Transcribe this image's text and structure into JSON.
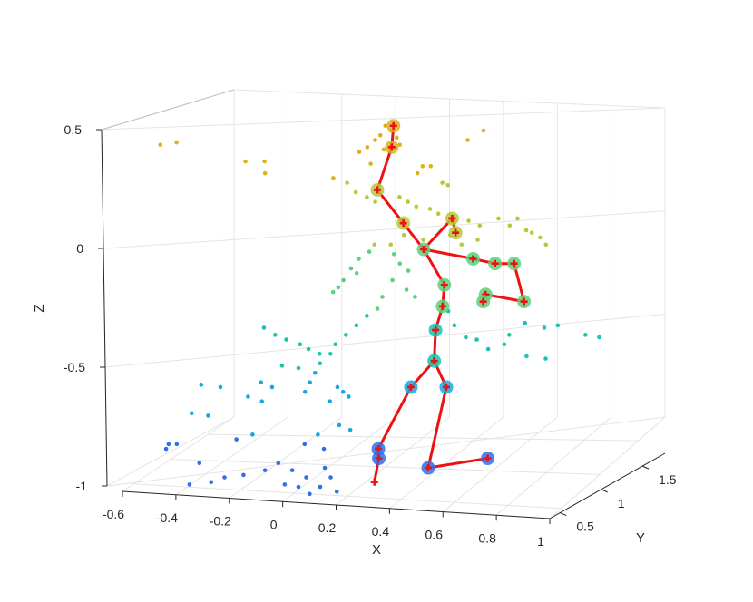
{
  "chart_data": {
    "type": "scatter",
    "title": "",
    "xlabel": "X",
    "ylabel": "Y",
    "zlabel": "Z",
    "x_ticks": [
      "-0.6",
      "-0.4",
      "-0.2",
      "0",
      "0.2",
      "0.4",
      "0.6",
      "0.8",
      "1"
    ],
    "y_ticks": [
      "0.5",
      "1",
      "1.5"
    ],
    "z_ticks": [
      "0.5",
      "0",
      "-0.5",
      "-1"
    ],
    "grid": true,
    "colors": {
      "skeleton": "#ee1111",
      "joint_marker": "#ee1111",
      "colormap": [
        "#2f6fe8",
        "#1aa7e0",
        "#19c4b0",
        "#5cd27a",
        "#b7c83a",
        "#d9b31f"
      ]
    },
    "series": [
      {
        "kind": "point_cloud",
        "points": [
          [
            0.4,
            0.52
          ],
          [
            0.42,
            0.5
          ],
          [
            0.38,
            0.48
          ],
          [
            0.36,
            0.46
          ],
          [
            0.44,
            0.47
          ],
          [
            0.33,
            0.43
          ],
          [
            0.3,
            0.41
          ],
          [
            -0.43,
            0.44
          ],
          [
            -0.37,
            0.45
          ],
          [
            -0.05,
            0.37
          ],
          [
            -0.12,
            0.37
          ],
          [
            -0.05,
            0.32
          ],
          [
            0.34,
            0.36
          ],
          [
            0.39,
            0.42
          ],
          [
            0.45,
            0.44
          ],
          [
            0.53,
            0.35
          ],
          [
            0.56,
            0.35
          ],
          [
            0.51,
            0.32
          ],
          [
            0.6,
            0.28
          ],
          [
            0.62,
            0.27
          ],
          [
            0.7,
            0.46
          ],
          [
            0.76,
            0.5
          ],
          [
            0.2,
            0.3
          ],
          [
            0.25,
            0.28
          ],
          [
            0.28,
            0.24
          ],
          [
            0.32,
            0.22
          ],
          [
            0.35,
            0.2
          ],
          [
            0.44,
            0.22
          ],
          [
            0.47,
            0.2
          ],
          [
            0.5,
            0.18
          ],
          [
            0.55,
            0.17
          ],
          [
            0.58,
            0.15
          ],
          [
            0.63,
            0.14
          ],
          [
            0.69,
            0.12
          ],
          [
            0.73,
            0.1
          ],
          [
            0.8,
            0.13
          ],
          [
            0.84,
            0.1
          ],
          [
            0.87,
            0.13
          ],
          [
            0.9,
            0.08
          ],
          [
            0.92,
            0.07
          ],
          [
            0.95,
            0.05
          ],
          [
            0.97,
            0.02
          ],
          [
            0.72,
            0.04
          ],
          [
            0.66,
            0.02
          ],
          [
            0.62,
            0.06
          ],
          [
            0.52,
            0.04
          ],
          [
            0.45,
            0.06
          ],
          [
            0.4,
            0.02
          ],
          [
            0.34,
            0.02
          ],
          [
            0.32,
            -0.01
          ],
          [
            0.28,
            -0.04
          ],
          [
            0.25,
            -0.08
          ],
          [
            0.27,
            -0.1
          ],
          [
            0.22,
            -0.13
          ],
          [
            0.2,
            -0.16
          ],
          [
            0.18,
            -0.18
          ],
          [
            0.41,
            -0.02
          ],
          [
            0.43,
            -0.06
          ],
          [
            0.46,
            -0.09
          ],
          [
            0.4,
            -0.13
          ],
          [
            0.45,
            -0.17
          ],
          [
            0.48,
            -0.2
          ],
          [
            0.36,
            -0.2
          ],
          [
            0.34,
            -0.25
          ],
          [
            0.3,
            -0.28
          ],
          [
            0.26,
            -0.32
          ],
          [
            0.22,
            -0.36
          ],
          [
            0.18,
            -0.4
          ],
          [
            0.16,
            -0.44
          ],
          [
            0.12,
            -0.48
          ],
          [
            0.1,
            -0.52
          ],
          [
            0.08,
            -0.56
          ],
          [
            0.06,
            -0.6
          ],
          [
            0.6,
            -0.26
          ],
          [
            0.62,
            -0.32
          ],
          [
            0.66,
            -0.37
          ],
          [
            0.7,
            -0.38
          ],
          [
            0.74,
            -0.42
          ],
          [
            0.8,
            -0.4
          ],
          [
            0.88,
            -0.31
          ],
          [
            0.95,
            -0.33
          ],
          [
            1.0,
            -0.32
          ],
          [
            0.82,
            -0.36
          ],
          [
            0.88,
            -0.45
          ],
          [
            0.95,
            -0.46
          ],
          [
            1.1,
            -0.36
          ],
          [
            1.15,
            -0.37
          ],
          [
            -0.08,
            -0.33
          ],
          [
            -0.04,
            -0.36
          ],
          [
            0.0,
            -0.38
          ],
          [
            0.05,
            -0.4
          ],
          [
            0.08,
            -0.42
          ],
          [
            0.12,
            -0.44
          ],
          [
            -0.02,
            -0.49
          ],
          [
            0.04,
            -0.5
          ],
          [
            -0.1,
            -0.56
          ],
          [
            -0.06,
            -0.58
          ],
          [
            -0.32,
            -0.57
          ],
          [
            -0.25,
            -0.58
          ],
          [
            -0.36,
            -0.69
          ],
          [
            -0.3,
            -0.7
          ],
          [
            -0.15,
            -0.62
          ],
          [
            -0.1,
            -0.64
          ],
          [
            0.18,
            -0.58
          ],
          [
            0.2,
            -0.6
          ],
          [
            0.22,
            -0.62
          ],
          [
            0.15,
            -0.64
          ],
          [
            -0.2,
            -0.8
          ],
          [
            -0.14,
            -0.78
          ],
          [
            0.05,
            -0.82
          ],
          [
            0.1,
            -0.78
          ],
          [
            0.12,
            -0.84
          ],
          [
            0.18,
            -0.74
          ],
          [
            0.22,
            -0.76
          ],
          [
            -0.18,
            -0.95
          ],
          [
            -0.1,
            -0.93
          ],
          [
            -0.05,
            -0.9
          ],
          [
            0.0,
            -0.93
          ],
          [
            0.05,
            -0.96
          ],
          [
            -0.03,
            -0.99
          ],
          [
            0.02,
            -1.0
          ],
          [
            -0.25,
            -0.96
          ],
          [
            -0.3,
            -0.98
          ],
          [
            -0.38,
            -0.99
          ],
          [
            -0.34,
            -0.9
          ],
          [
            -0.46,
            -0.84
          ],
          [
            -0.45,
            -0.82
          ],
          [
            -0.42,
            -0.82
          ],
          [
            0.12,
            -0.92
          ],
          [
            0.14,
            -0.96
          ],
          [
            0.1,
            -1.0
          ],
          [
            0.16,
            -1.02
          ],
          [
            0.06,
            -1.03
          ]
        ]
      },
      {
        "kind": "skeleton",
        "name": "",
        "joints": [
          [
            0.43,
            0.52
          ],
          [
            0.42,
            0.43
          ],
          [
            0.36,
            0.25
          ],
          [
            0.45,
            0.11
          ],
          [
            0.52,
            0.0
          ],
          [
            0.63,
            0.13
          ],
          [
            0.64,
            0.07
          ],
          [
            0.7,
            -0.04
          ],
          [
            0.78,
            -0.06
          ],
          [
            0.85,
            -0.06
          ],
          [
            0.88,
            -0.22
          ],
          [
            0.74,
            -0.19
          ],
          [
            0.73,
            -0.22
          ],
          [
            0.59,
            -0.15
          ],
          [
            0.58,
            -0.24
          ],
          [
            0.55,
            -0.34
          ],
          [
            0.54,
            -0.47
          ],
          [
            0.45,
            -0.58
          ],
          [
            0.58,
            -0.58
          ],
          [
            0.32,
            -0.84
          ],
          [
            0.32,
            -0.88
          ],
          [
            0.5,
            -0.92
          ],
          [
            0.72,
            -0.88
          ],
          [
            0.3,
            -0.98
          ]
        ],
        "bones": [
          [
            0,
            1
          ],
          [
            1,
            2
          ],
          [
            2,
            3
          ],
          [
            3,
            4
          ],
          [
            4,
            5
          ],
          [
            5,
            6
          ],
          [
            4,
            7
          ],
          [
            7,
            8
          ],
          [
            8,
            9
          ],
          [
            9,
            10
          ],
          [
            10,
            11
          ],
          [
            11,
            12
          ],
          [
            4,
            13
          ],
          [
            13,
            14
          ],
          [
            14,
            15
          ],
          [
            15,
            16
          ],
          [
            16,
            17
          ],
          [
            16,
            18
          ],
          [
            17,
            19
          ],
          [
            19,
            20
          ],
          [
            20,
            23
          ],
          [
            18,
            21
          ],
          [
            21,
            22
          ]
        ]
      }
    ]
  }
}
